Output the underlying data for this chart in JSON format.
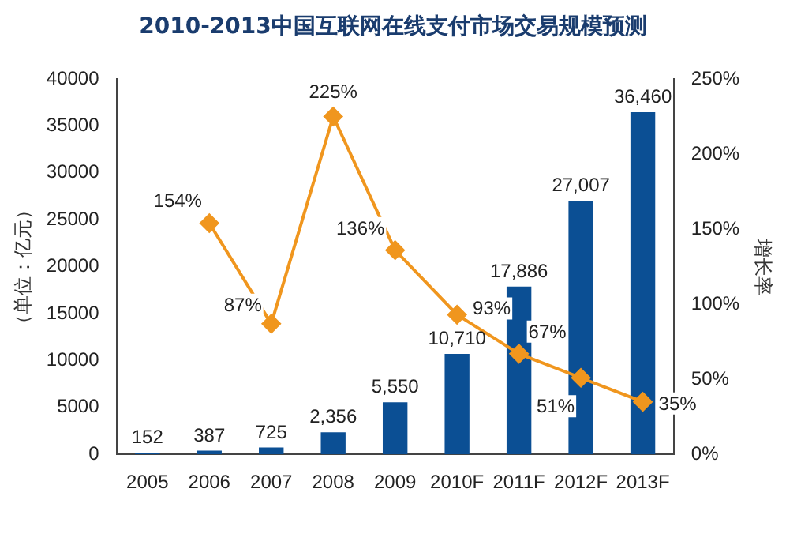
{
  "chart_data": {
    "type": "bar",
    "title": "2010-2013中国互联网在线支付市场交易规模预测",
    "ylabel": "（单位：亿元）",
    "y2label": "增长率",
    "categories": [
      "2005",
      "2006",
      "2007",
      "2008",
      "2009",
      "2010F",
      "2011F",
      "2012F",
      "2013F"
    ],
    "series": [
      {
        "color": "#0b4f94",
        "values": [
          152,
          387,
          725,
          2356,
          5550,
          10710,
          17886,
          27007,
          36460
        ],
        "value_labels": [
          "152",
          "387",
          "725",
          "2,356",
          "5,550",
          "10,710",
          "17,886",
          "27,007",
          "36,460"
        ]
      },
      {
        "type": "line",
        "axis": "y2",
        "color": "#f0961e",
        "marker": "diamond",
        "values": [
          null,
          154,
          87,
          225,
          136,
          93,
          67,
          51,
          35
        ],
        "value_labels": [
          null,
          "154%",
          "87%",
          "225%",
          "136%",
          "93%",
          "67%",
          "51%",
          "35%"
        ]
      }
    ],
    "ylim": [
      0,
      40000
    ],
    "yticks": [
      0,
      5000,
      10000,
      15000,
      20000,
      25000,
      30000,
      35000,
      40000
    ],
    "y2lim": [
      0,
      250
    ],
    "y2ticks": [
      {
        "value": 0,
        "label": "0%"
      },
      {
        "value": 50,
        "label": "50%"
      },
      {
        "value": 100,
        "label": "100%"
      },
      {
        "value": 150,
        "label": "150%"
      },
      {
        "value": 200,
        "label": "200%"
      },
      {
        "value": 250,
        "label": "250%"
      }
    ],
    "grid": false,
    "legend": false
  }
}
